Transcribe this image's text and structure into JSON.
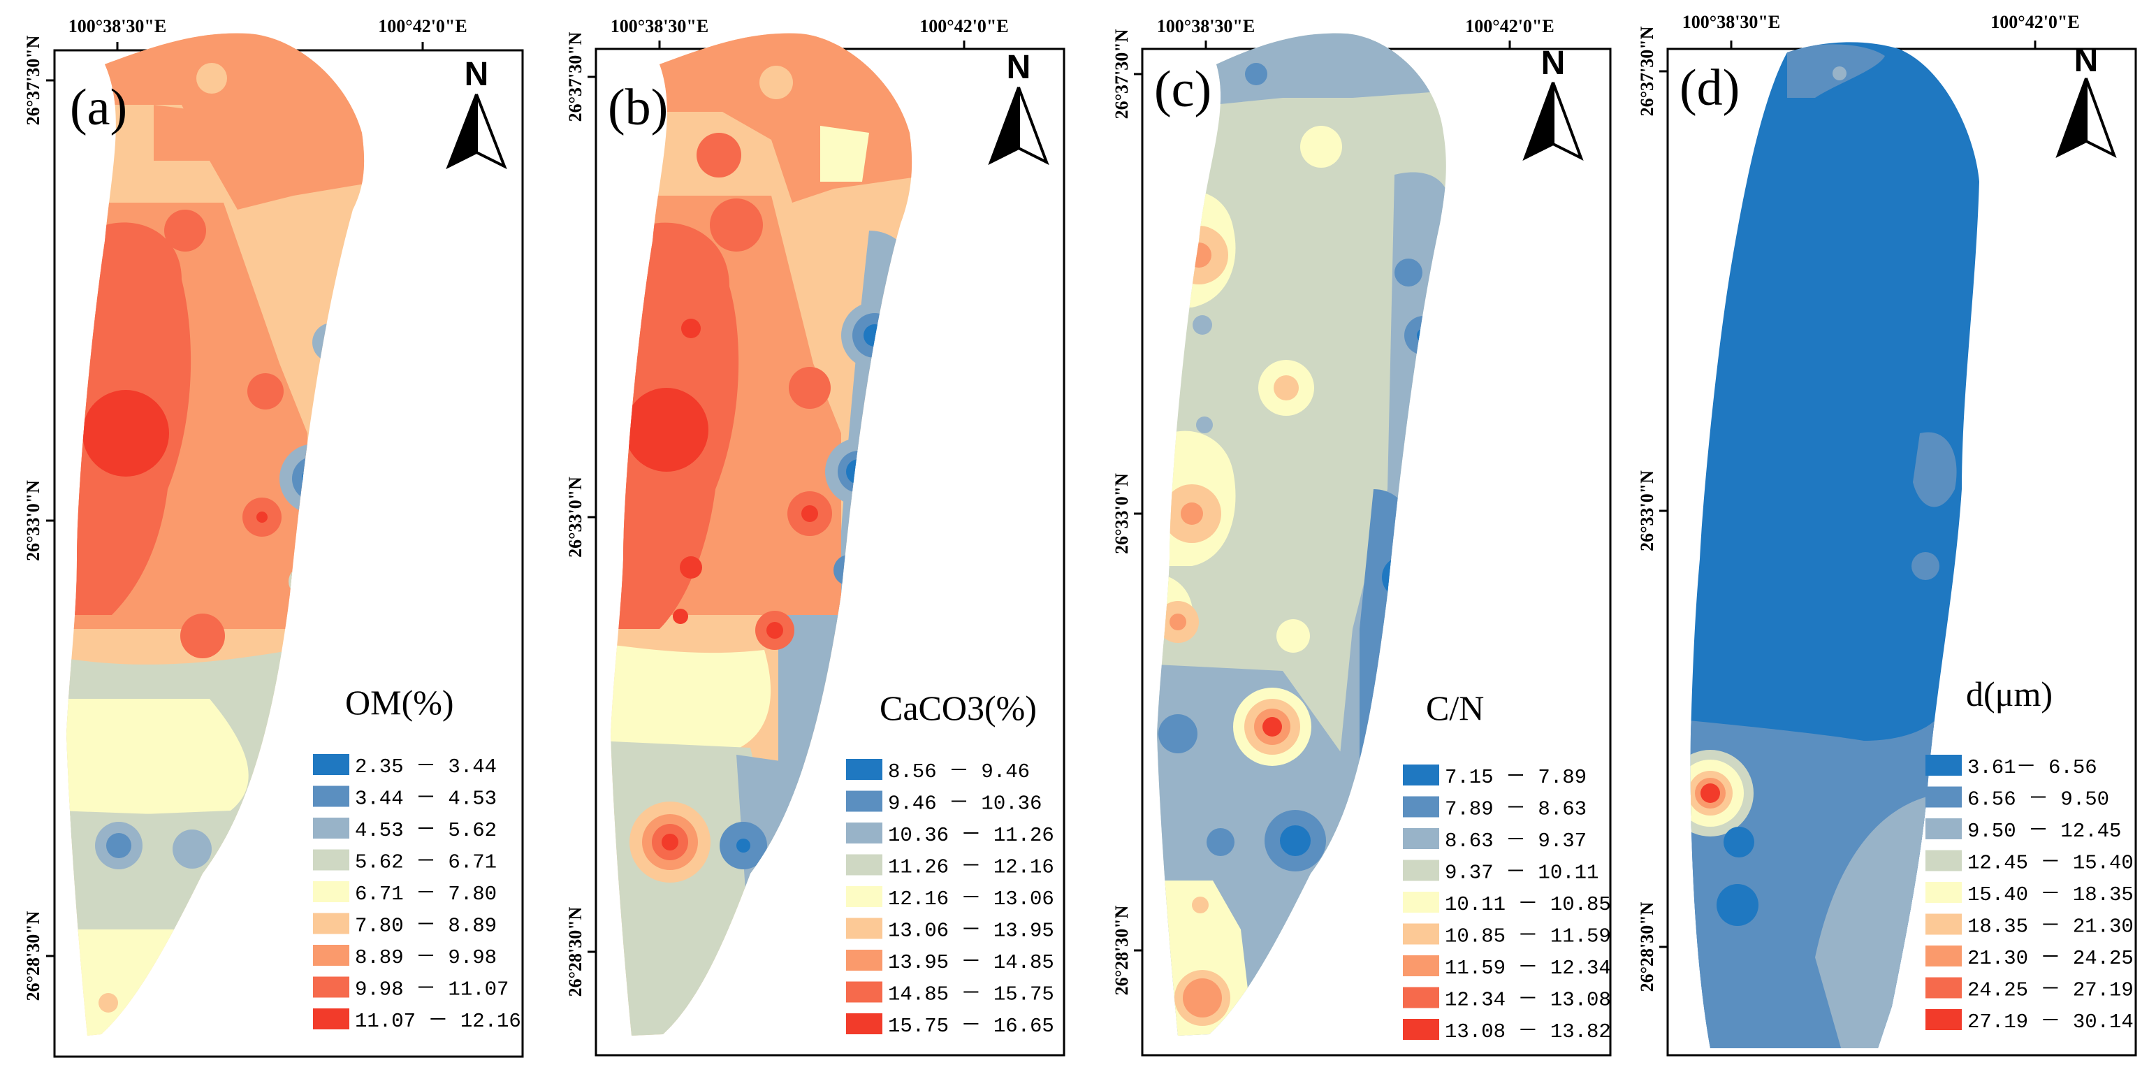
{
  "figure": {
    "top_ticks": [
      "100°38'30\"E",
      "100°42'0\"E"
    ],
    "left_ticks": [
      "26°37'30\"N",
      "26°33'0\"N",
      "26°28'30\"N"
    ],
    "north_label": "N"
  },
  "panels": [
    {
      "id": "a",
      "label": "(a)",
      "variable_title": "OM(%)",
      "legend": [
        {
          "range": "2.35 － 3.44",
          "color": "#1f78c1"
        },
        {
          "range": "3.44 － 4.53",
          "color": "#5b8fc0"
        },
        {
          "range": "4.53 － 5.62",
          "color": "#98b3c8"
        },
        {
          "range": "5.62 － 6.71",
          "color": "#cfd8c3"
        },
        {
          "range": "6.71 － 7.80",
          "color": "#fdfcc4"
        },
        {
          "range": "7.80 － 8.89",
          "color": "#fcc996"
        },
        {
          "range": "8.89 － 9.98",
          "color": "#fa9a6c"
        },
        {
          "range": "9.98 － 11.07",
          "color": "#f66a4c"
        },
        {
          "range": "11.07 － 12.16",
          "color": "#f23b2a"
        }
      ]
    },
    {
      "id": "b",
      "label": "(b)",
      "variable_title": "CaCO3(%)",
      "legend": [
        {
          "range": "8.56 － 9.46",
          "color": "#1f78c1"
        },
        {
          "range": "9.46 － 10.36",
          "color": "#5b8fc0"
        },
        {
          "range": "10.36 － 11.26",
          "color": "#98b3c8"
        },
        {
          "range": "11.26 － 12.16",
          "color": "#cfd8c3"
        },
        {
          "range": "12.16 － 13.06",
          "color": "#fdfcc4"
        },
        {
          "range": "13.06 － 13.95",
          "color": "#fcc996"
        },
        {
          "range": "13.95 － 14.85",
          "color": "#fa9a6c"
        },
        {
          "range": "14.85 － 15.75",
          "color": "#f66a4c"
        },
        {
          "range": "15.75 － 16.65",
          "color": "#f23b2a"
        }
      ]
    },
    {
      "id": "c",
      "label": "(c)",
      "variable_title": "C/N",
      "legend": [
        {
          "range": "7.15 － 7.89",
          "color": "#1f78c1"
        },
        {
          "range": "7.89 － 8.63",
          "color": "#5b8fc0"
        },
        {
          "range": "8.63 － 9.37",
          "color": "#98b3c8"
        },
        {
          "range": "9.37 － 10.11",
          "color": "#cfd8c3"
        },
        {
          "range": "10.11 － 10.85",
          "color": "#fdfcc4"
        },
        {
          "range": "10.85 － 11.59",
          "color": "#fcc996"
        },
        {
          "range": "11.59 － 12.34",
          "color": "#fa9a6c"
        },
        {
          "range": "12.34 － 13.08",
          "color": "#f66a4c"
        },
        {
          "range": "13.08 － 13.82",
          "color": "#f23b2a"
        }
      ]
    },
    {
      "id": "d",
      "label": "(d)",
      "variable_title": "d(μm)",
      "legend": [
        {
          "range": "3.61－ 6.56",
          "color": "#1f78c1"
        },
        {
          "range": "6.56 － 9.50",
          "color": "#5b8fc0"
        },
        {
          "range": "9.50 － 12.45",
          "color": "#98b3c8"
        },
        {
          "range": "12.45 － 15.40",
          "color": "#cfd8c3"
        },
        {
          "range": "15.40 － 18.35",
          "color": "#fdfcc4"
        },
        {
          "range": "18.35 － 21.30",
          "color": "#fcc996"
        },
        {
          "range": "21.30 － 24.25",
          "color": "#fa9a6c"
        },
        {
          "range": "24.25 － 27.19",
          "color": "#f66a4c"
        },
        {
          "range": "27.19 － 30.14",
          "color": "#f23b2a"
        }
      ]
    }
  ]
}
